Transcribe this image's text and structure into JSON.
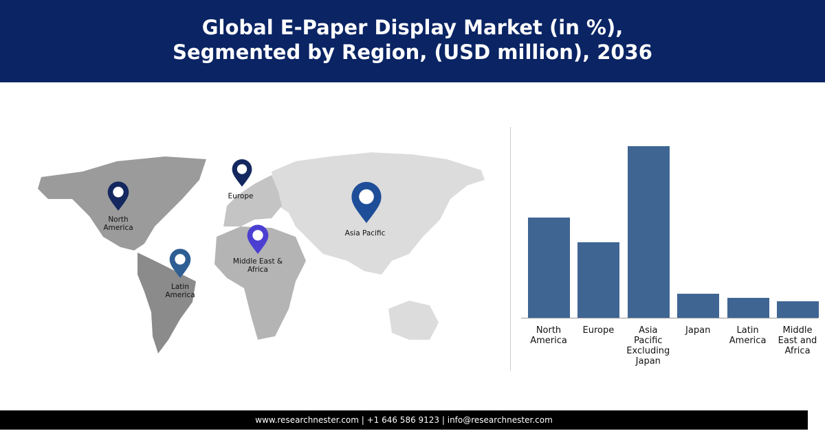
{
  "header": {
    "title_line1": "Global E-Paper Display Market (in %),",
    "title_line2": "Segmented by Region, (USD million), 2036"
  },
  "map": {
    "labels": [
      "North America",
      "Europe",
      "Asia Pacific",
      "Middle East & Africa",
      "Latin America"
    ]
  },
  "chart_data": {
    "type": "bar",
    "categories": [
      "North America",
      "Europe",
      "Asia Pacific Excluding Japan",
      "Japan",
      "Latin America",
      "Middle East and Africa"
    ],
    "values": [
      24.6,
      18.5,
      42.1,
      5.9,
      4.9,
      4.0
    ],
    "color": "#3f6593"
  },
  "footer": {
    "text": "www.researchnester.com | +1 646 586 9123 | info@researchnester.com"
  }
}
